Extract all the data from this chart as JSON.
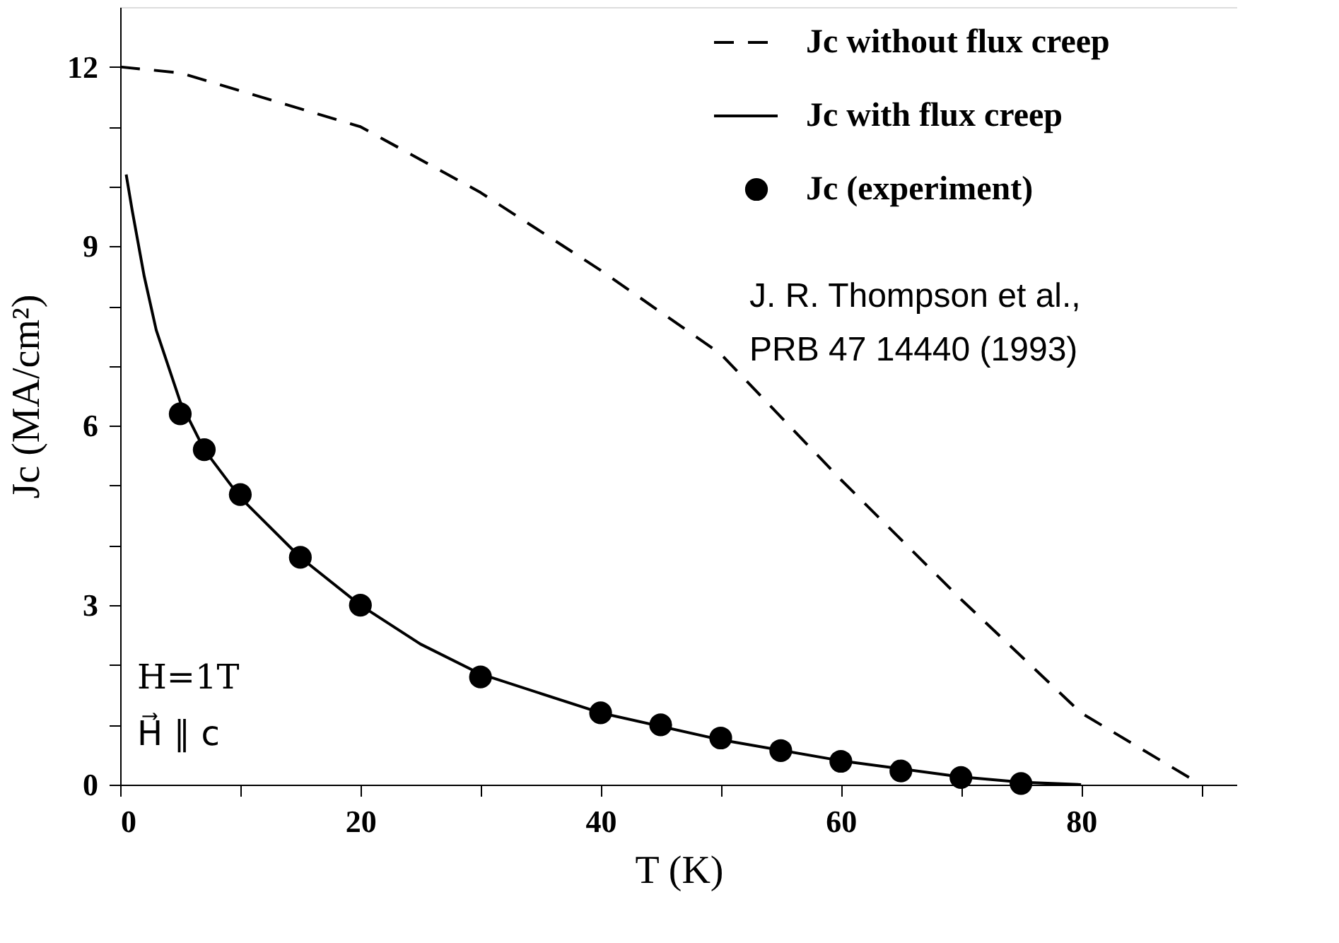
{
  "chart_data": {
    "type": "line",
    "xlabel": "T (K)",
    "ylabel": "Jc (MA/cm²)",
    "xlim": [
      0,
      93
    ],
    "ylim": [
      0,
      13
    ],
    "xticks": [
      0,
      {
        "value": 10,
        "label": null
      },
      20,
      {
        "value": 30,
        "label": null
      },
      40,
      {
        "value": 50,
        "label": null
      },
      60,
      {
        "value": 70,
        "label": null
      },
      80,
      {
        "value": 90,
        "label": null
      }
    ],
    "yticks": [
      0,
      {
        "value": 1,
        "label": null
      },
      {
        "value": 2,
        "label": null
      },
      3,
      {
        "value": 4,
        "label": null
      },
      {
        "value": 5,
        "label": null
      },
      6,
      {
        "value": 7,
        "label": null
      },
      {
        "value": 8,
        "label": null
      },
      9,
      {
        "value": 10,
        "label": null
      },
      {
        "value": 11,
        "label": null
      },
      12
    ],
    "grid": false,
    "legend": "top right",
    "series": [
      {
        "name": "Jc without flux creep",
        "type": "line",
        "line_style": "dashed",
        "color": "#000000",
        "x": [
          0,
          5,
          10,
          20,
          30,
          40,
          50,
          60,
          70,
          80,
          90
        ],
        "values": [
          12,
          11.9,
          11.6,
          11.0,
          9.9,
          8.6,
          7.2,
          5.1,
          3.1,
          1.2,
          0
        ]
      },
      {
        "name": "Jc with flux creep",
        "type": "line",
        "line_style": "solid",
        "color": "#000000",
        "x": [
          0.5,
          1,
          2,
          3,
          5,
          7,
          10,
          15,
          20,
          25,
          30,
          40,
          50,
          60,
          70,
          75,
          80
        ],
        "values": [
          10.2,
          9.6,
          8.5,
          7.6,
          6.4,
          5.6,
          4.8,
          3.8,
          3.0,
          2.35,
          1.85,
          1.2,
          0.75,
          0.4,
          0.13,
          0.04,
          0
        ]
      },
      {
        "name": "Jc (experiment)",
        "type": "scatter",
        "marker": "circle",
        "color": "#000000",
        "x": [
          5,
          7,
          10,
          15,
          20,
          30,
          40,
          45,
          50,
          55,
          60,
          65,
          70,
          75
        ],
        "values": [
          6.2,
          5.6,
          4.85,
          3.8,
          3.0,
          1.8,
          1.2,
          1.0,
          0.78,
          0.57,
          0.39,
          0.23,
          0.12,
          0.02
        ]
      }
    ],
    "annotations": [
      "H=1T",
      "H⃗ ∥ c",
      "J. R. Thompson et al.,",
      "PRB 47 14440 (1993)"
    ]
  }
}
